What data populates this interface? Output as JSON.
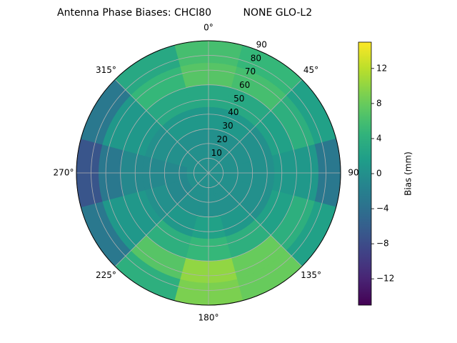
{
  "chart_data": {
    "type": "polar_contour",
    "title": "Antenna Phase Biases: CHCI80          NONE GLO-L2",
    "colorbar_label": "Bias (mm)",
    "clim": [
      -15,
      15
    ],
    "cticks": [
      {
        "value": -12,
        "label": "−12"
      },
      {
        "value": -8,
        "label": "−8"
      },
      {
        "value": -4,
        "label": "−4"
      },
      0,
      4,
      8,
      12
    ],
    "theta_ticks": [
      {
        "value": 0,
        "label": "0°"
      },
      {
        "value": 45,
        "label": "45°"
      },
      {
        "value": 90,
        "label": "90"
      },
      {
        "value": 135,
        "label": "135°"
      },
      {
        "value": 180,
        "label": "180°"
      },
      {
        "value": 225,
        "label": "225°"
      },
      {
        "value": 270,
        "label": "270°"
      },
      {
        "value": 315,
        "label": "315°"
      }
    ],
    "rlim": [
      0,
      90
    ],
    "rticks": [
      10,
      20,
      30,
      40,
      50,
      60,
      70,
      80,
      90
    ],
    "azimuth": [
      0,
      30,
      60,
      90,
      120,
      150,
      180,
      210,
      240,
      270,
      300,
      330
    ],
    "zenith": [
      7.5,
      22.5,
      37.5,
      52.5,
      67.5,
      82.5
    ],
    "values": [
      [
        0,
        0,
        1,
        3,
        7,
        6
      ],
      [
        0,
        0,
        1,
        3,
        6,
        5
      ],
      [
        0,
        0,
        0,
        2,
        4,
        2
      ],
      [
        0,
        0,
        0,
        1,
        1,
        -3
      ],
      [
        0,
        0,
        0,
        2,
        4,
        2
      ],
      [
        0,
        0,
        1,
        4,
        8,
        8
      ],
      [
        0,
        0,
        2,
        5,
        10,
        9
      ],
      [
        0,
        0,
        1,
        4,
        7,
        4
      ],
      [
        0,
        -1,
        0,
        1,
        1,
        -3
      ],
      [
        0,
        -1,
        -1,
        -1,
        -3,
        -7
      ],
      [
        0,
        0,
        0,
        1,
        1,
        -3
      ],
      [
        0,
        0,
        1,
        3,
        5,
        3
      ]
    ],
    "grid": true
  }
}
